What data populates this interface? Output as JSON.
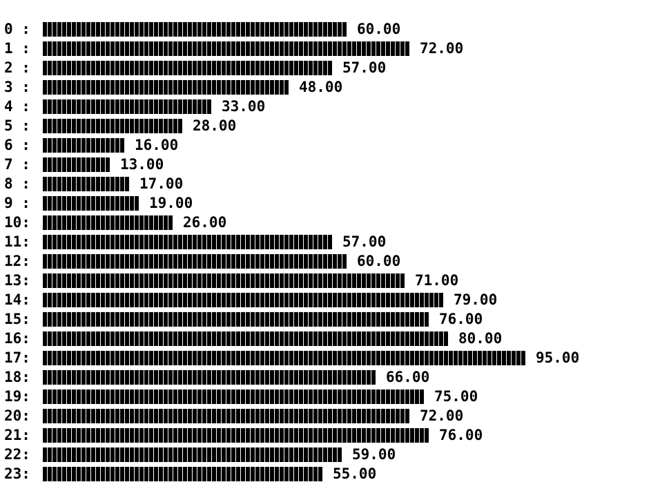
{
  "chart_data": {
    "type": "bar",
    "orientation": "horizontal",
    "style": "terminal text bar chart",
    "bar_color": "#000000",
    "background_color": "#ffffff",
    "value_format": "2 decimals",
    "categories": [
      "0 :",
      "1 :",
      "2 :",
      "3 :",
      "4 :",
      "5 :",
      "6 :",
      "7 :",
      "8 :",
      "9 :",
      "10:",
      "11:",
      "12:",
      "13:",
      "14:",
      "15:",
      "16:",
      "17:",
      "18:",
      "19:",
      "20:",
      "21:",
      "22:",
      "23:"
    ],
    "values": [
      60,
      72,
      57,
      48,
      33,
      28,
      16,
      13,
      17,
      19,
      26,
      57,
      60,
      71,
      79,
      76,
      80,
      95,
      66,
      75,
      72,
      76,
      59,
      55
    ],
    "value_labels": [
      "60.00",
      "72.00",
      "57.00",
      "48.00",
      "33.00",
      "28.00",
      "16.00",
      "13.00",
      "17.00",
      "19.00",
      "26.00",
      "57.00",
      "60.00",
      "71.00",
      "79.00",
      "76.00",
      "80.00",
      "95.00",
      "66.00",
      "75.00",
      "72.00",
      "76.00",
      "59.00",
      "55.00"
    ],
    "xlim": [
      0,
      95
    ],
    "grid": false,
    "legend": "none"
  }
}
